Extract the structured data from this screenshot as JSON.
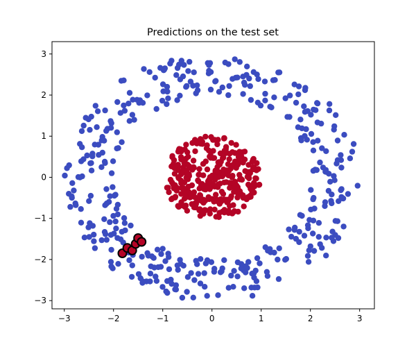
{
  "chart_data": {
    "type": "scatter",
    "title": "Predictions on the test set",
    "xlabel": "",
    "ylabel": "",
    "xlim": [
      -3.25,
      3.3
    ],
    "ylim": [
      -3.2,
      3.3
    ],
    "xticks": [
      -3,
      -2,
      -1,
      0,
      1,
      2,
      3
    ],
    "yticks": [
      -3,
      -2,
      -1,
      0,
      1,
      2,
      3
    ],
    "grid": false,
    "colors": {
      "outer_class": "#3b4cc0",
      "inner_class": "#b40426",
      "misclassified_edge": "#000000"
    },
    "outer_ring": {
      "class": 0,
      "radius_range": [
        2.0,
        3.0
      ],
      "count": 420
    },
    "inner_disk": {
      "class": 1,
      "radius_max": 1.0,
      "count": 330
    },
    "misclassified_points": [
      {
        "x": -1.82,
        "y": -1.85
      },
      {
        "x": -1.72,
        "y": -1.72
      },
      {
        "x": -1.62,
        "y": -1.78
      },
      {
        "x": -1.55,
        "y": -1.62
      },
      {
        "x": -1.5,
        "y": -1.48
      },
      {
        "x": -1.43,
        "y": -1.57
      }
    ]
  }
}
